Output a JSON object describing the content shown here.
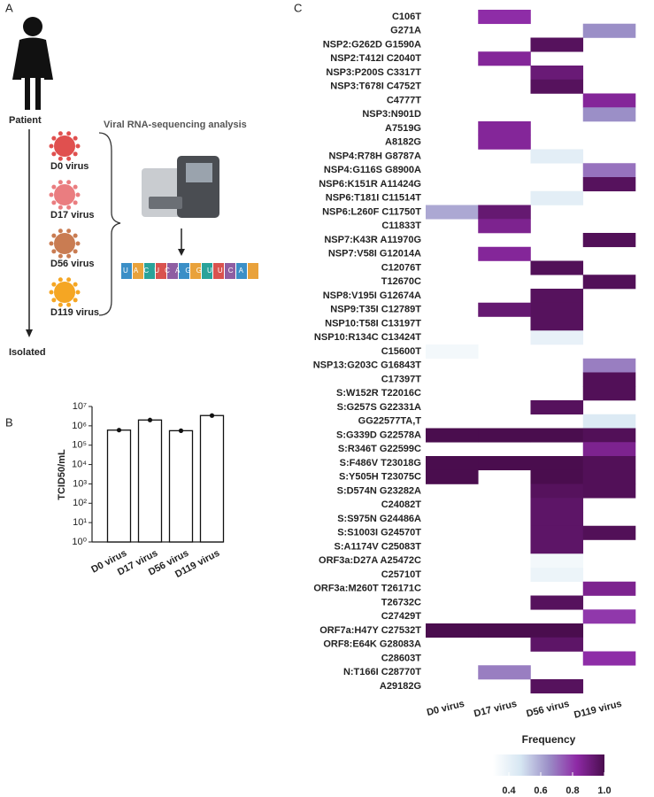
{
  "panel_labels": [
    "A",
    "B",
    "C"
  ],
  "diagram": {
    "patient": "Patient",
    "isolated": "Isolated",
    "analysis": "Viral RNA-sequencing analysis",
    "viruses": [
      "D0 virus",
      "D17 virus",
      "D56 virus",
      "D119 virus"
    ],
    "sequence": "UACUCAGGUUCA"
  },
  "chart_data": [
    {
      "type": "bar",
      "ylabel": "TCID50/mL",
      "log": true,
      "categories": [
        "D0 virus",
        "D17 virus",
        "D56 virus",
        "D119 virus"
      ],
      "values": [
        600000,
        2000000,
        560000,
        3400000
      ],
      "color": "#ffffff",
      "ylim": [
        1,
        10000000
      ],
      "yticks": [
        {
          "value": 1,
          "label": "10⁰"
        },
        {
          "value": 10,
          "label": "10¹"
        },
        {
          "value": 100,
          "label": "10²"
        },
        {
          "value": 1000,
          "label": "10³"
        },
        {
          "value": 10000,
          "label": "10⁴"
        },
        {
          "value": 100000,
          "label": "10⁵"
        },
        {
          "value": 1000000,
          "label": "10⁶"
        },
        {
          "value": 10000000,
          "label": "10⁷"
        }
      ]
    },
    {
      "type": "heatmap",
      "columns": [
        "D0 virus",
        "D17 virus",
        "D56 virus",
        "D119 virus"
      ],
      "rows": [
        "C106T",
        "G271A",
        "NSP2:G262D G1590A",
        "NSP2:T412I C2040T",
        "NSP3:P200S C3317T",
        "NSP3:T678I C4752T",
        "C4777T",
        "NSP3:N901D",
        "A7519G",
        "A8182G",
        "NSP4:R78H G8787A",
        "NSP4:G116S G8900A",
        "NSP6:K151R A11424G",
        "NSP6:T181I C11514T",
        "NSP6:L260F C11750T",
        "C11833T",
        "NSP7:K43R A11970G",
        "NSP7:V58I G12014A",
        "C12076T",
        "T12670C",
        "NSP8:V195I G12674A",
        "NSP9:T35I C12789T",
        "NSP10:T58I C13197T",
        "NSP10:R134C C13424T",
        "C15600T",
        "NSP13:G203C G16843T",
        "C17397T",
        "S:W152R T22016C",
        "S:G257S G22331A",
        "GG22577TA,T",
        "S:G339D G22578A",
        "S:R346T G22599C",
        "S:F486V T23018G",
        "S:Y505H T23075C",
        "S:D574N G23282A",
        "C24082T",
        "S:S975N G24486A",
        "S:S1003I G24570T",
        "S:A1174V C25083T",
        "ORF3a:D27A A25472C",
        "C25710T",
        "ORF3a:M260T T26171C",
        "T26732C",
        "C27429T",
        "ORF7a:H47Y C27532T",
        "ORF8:E64K G28083A",
        "C28603T",
        "N:T166I C28770T",
        "A29182G"
      ],
      "values": [
        [
          null,
          0.82,
          null,
          null
        ],
        [
          null,
          null,
          null,
          0.65
        ],
        [
          null,
          null,
          0.97,
          null
        ],
        [
          null,
          0.85,
          null,
          null
        ],
        [
          null,
          null,
          0.92,
          null
        ],
        [
          null,
          null,
          0.97,
          null
        ],
        [
          null,
          null,
          null,
          0.85
        ],
        [
          null,
          null,
          null,
          0.65
        ],
        [
          null,
          0.85,
          null,
          null
        ],
        [
          null,
          0.85,
          null,
          null
        ],
        [
          null,
          null,
          0.42,
          null
        ],
        [
          null,
          null,
          null,
          0.7
        ],
        [
          null,
          null,
          null,
          0.97
        ],
        [
          null,
          null,
          0.42,
          null
        ],
        [
          0.6,
          0.93,
          null,
          null
        ],
        [
          null,
          0.87,
          null,
          null
        ],
        [
          null,
          null,
          null,
          0.98
        ],
        [
          null,
          0.85,
          null,
          null
        ],
        [
          null,
          null,
          0.98,
          null
        ],
        [
          null,
          null,
          null,
          0.98
        ],
        [
          null,
          null,
          0.97,
          null
        ],
        [
          null,
          0.93,
          0.97,
          null
        ],
        [
          null,
          null,
          0.97,
          null
        ],
        [
          null,
          null,
          0.4,
          null
        ],
        [
          0.35,
          null,
          null,
          null
        ],
        [
          null,
          null,
          null,
          0.68
        ],
        [
          null,
          null,
          null,
          0.98
        ],
        [
          null,
          null,
          null,
          0.98
        ],
        [
          null,
          null,
          0.97,
          null
        ],
        [
          null,
          null,
          null,
          0.45
        ],
        [
          1,
          1,
          1,
          0.98
        ],
        [
          null,
          null,
          null,
          0.87
        ],
        [
          1,
          1,
          1,
          0.98
        ],
        [
          1,
          null,
          1,
          0.98
        ],
        [
          null,
          null,
          0.97,
          0.98
        ],
        [
          null,
          null,
          0.95,
          null
        ],
        [
          null,
          null,
          0.95,
          null
        ],
        [
          null,
          null,
          0.95,
          0.98
        ],
        [
          null,
          null,
          0.95,
          null
        ],
        [
          null,
          null,
          0.35,
          null
        ],
        [
          null,
          null,
          0.38,
          null
        ],
        [
          null,
          null,
          null,
          0.87
        ],
        [
          null,
          null,
          0.97,
          null
        ],
        [
          null,
          null,
          null,
          0.8
        ],
        [
          1,
          1,
          1,
          null
        ],
        [
          null,
          null,
          0.95,
          null
        ],
        [
          null,
          null,
          null,
          0.82
        ],
        [
          null,
          0.68,
          null,
          null
        ],
        [
          null,
          null,
          0.97,
          null
        ]
      ],
      "colorbar_title": "Frequency",
      "zlim": [
        0.3,
        1
      ],
      "zticks": [
        0.4,
        0.6,
        0.8,
        {
          "value": 1,
          "label": "1.0"
        }
      ],
      "colorscale": [
        "#ffffff",
        "#d6e6f2",
        "#9b8fc7",
        "#8e2aa6",
        "#4a0d4e"
      ]
    }
  ]
}
